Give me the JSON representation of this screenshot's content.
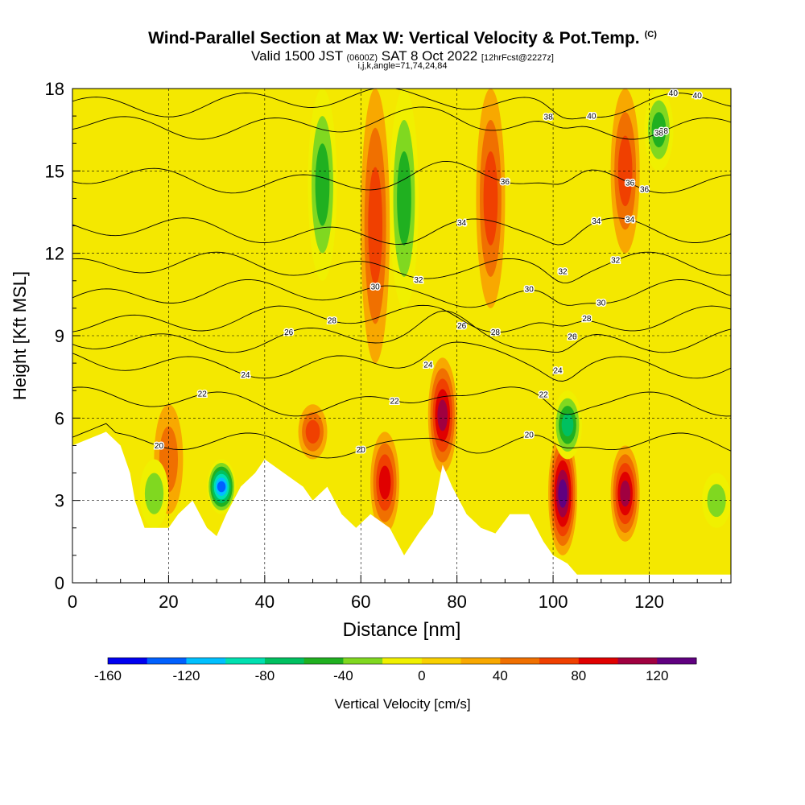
{
  "title": "Wind-Parallel Section at Max W: Vertical Velocity & Pot.Temp.",
  "title_mark": "(C)",
  "subtitle_a": "Valid 1500 JST",
  "subtitle_b": "(0600Z)",
  "subtitle_c": "SAT 8 Oct 2022",
  "subtitle_d": "[12hrFcst@2227z]",
  "subtitle2": "i,j,k,angle=71,74,24,84",
  "chart_data": {
    "type": "heatmap",
    "xlabel": "Distance [nm]",
    "ylabel": "Height [Kft MSL]",
    "xlim": [
      0,
      137
    ],
    "ylim": [
      0,
      18
    ],
    "x_ticks": [
      0,
      20,
      40,
      60,
      80,
      100,
      120
    ],
    "y_ticks": [
      0,
      3,
      6,
      9,
      12,
      15,
      18
    ],
    "colorbar": {
      "label": "Vertical Velocity [cm/s]",
      "range": [
        -160,
        140
      ],
      "ticks": [
        -160,
        -120,
        -80,
        -40,
        0,
        40,
        80,
        120
      ],
      "colors": [
        "#0000f0",
        "#0060ff",
        "#00c0ff",
        "#00e0b0",
        "#00c060",
        "#20b020",
        "#80d820",
        "#f0f000",
        "#f8d000",
        "#f8a800",
        "#f07000",
        "#f04000",
        "#e00000",
        "#a00040",
        "#600080"
      ]
    },
    "terrain_height": [
      [
        0,
        5.0
      ],
      [
        7,
        5.5
      ],
      [
        10,
        5.0
      ],
      [
        12,
        4.0
      ],
      [
        13,
        3.0
      ],
      [
        15,
        2.0
      ],
      [
        20,
        2.0
      ],
      [
        22,
        2.5
      ],
      [
        25,
        3.0
      ],
      [
        28,
        2.0
      ],
      [
        30,
        1.7
      ],
      [
        32,
        2.5
      ],
      [
        35,
        3.5
      ],
      [
        38,
        4.0
      ],
      [
        40,
        4.5
      ],
      [
        44,
        4.0
      ],
      [
        48,
        3.5
      ],
      [
        50,
        3.0
      ],
      [
        53,
        3.5
      ],
      [
        56,
        2.5
      ],
      [
        59,
        2.0
      ],
      [
        62,
        2.5
      ],
      [
        66,
        2.0
      ],
      [
        69,
        1.0
      ],
      [
        72,
        1.8
      ],
      [
        75,
        2.5
      ],
      [
        77,
        4.3
      ],
      [
        79,
        3.5
      ],
      [
        82,
        2.5
      ],
      [
        85,
        2.0
      ],
      [
        88,
        1.8
      ],
      [
        91,
        2.5
      ],
      [
        95,
        2.5
      ],
      [
        98,
        1.5
      ],
      [
        100,
        1.0
      ],
      [
        103,
        0.7
      ],
      [
        105,
        0.3
      ],
      [
        137,
        0.3
      ]
    ],
    "theta_contours": [
      {
        "label": "20",
        "base_height": 5.0
      },
      {
        "label": "22",
        "base_height": 6.6
      },
      {
        "label": "24",
        "base_height": 8.0
      },
      {
        "label": "26",
        "base_height": 8.9
      },
      {
        "label": "28",
        "base_height": 9.6
      },
      {
        "label": "30",
        "base_height": 10.5
      },
      {
        "label": "32",
        "base_height": 11.5
      },
      {
        "label": "34",
        "base_height": 12.8
      },
      {
        "label": "36",
        "base_height": 14.7
      },
      {
        "label": "38",
        "base_height": 16.7
      },
      {
        "label": "40",
        "base_height": 17.5
      }
    ],
    "w_features": [
      {
        "x": 77,
        "z_min": 4.0,
        "z_max": 8.2,
        "w": 100
      },
      {
        "x": 102,
        "z_min": 1.0,
        "z_max": 5.5,
        "w": 130
      },
      {
        "x": 115,
        "z_min": 1.5,
        "z_max": 5.0,
        "w": 100
      },
      {
        "x": 65,
        "z_min": 1.8,
        "z_max": 5.5,
        "w": 80
      },
      {
        "x": 63,
        "z_min": 8.0,
        "z_max": 18.0,
        "w": 60
      },
      {
        "x": 87,
        "z_min": 10.0,
        "z_max": 18.0,
        "w": 60
      },
      {
        "x": 115,
        "z_min": 12.0,
        "z_max": 18.0,
        "w": 60
      },
      {
        "x": 50,
        "z_min": 4.5,
        "z_max": 6.5,
        "w": 60
      },
      {
        "x": 20,
        "z_min": 2.5,
        "z_max": 6.5,
        "w": 50
      },
      {
        "x": 31,
        "z_min": 2.5,
        "z_max": 4.5,
        "w": -130
      },
      {
        "x": 52,
        "z_min": 11.0,
        "z_max": 18.0,
        "w": -50
      },
      {
        "x": 69,
        "z_min": 10.0,
        "z_max": 18.0,
        "w": -50
      },
      {
        "x": 122,
        "z_min": 15.0,
        "z_max": 18.0,
        "w": -60
      },
      {
        "x": 103,
        "z_min": 4.5,
        "z_max": 7.0,
        "w": -70
      },
      {
        "x": 17,
        "z_min": 2.0,
        "z_max": 4.5,
        "w": -40
      },
      {
        "x": 134,
        "z_min": 2.0,
        "z_max": 4.0,
        "w": -40
      }
    ]
  }
}
